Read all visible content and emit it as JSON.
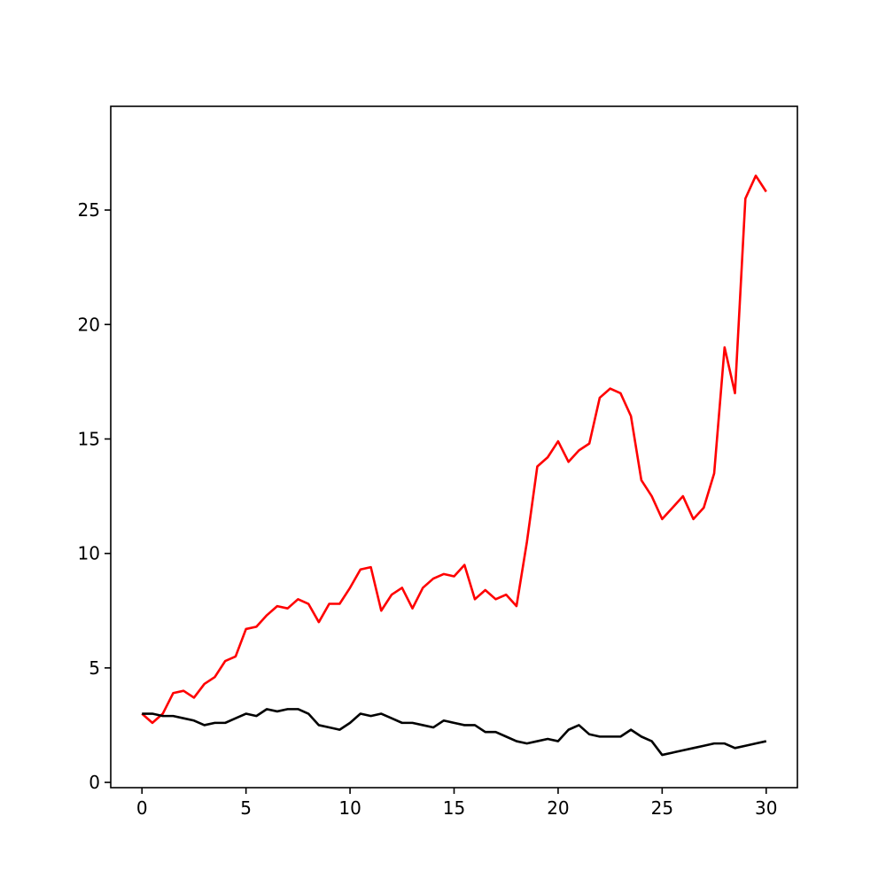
{
  "chart_data": {
    "type": "line",
    "x": [
      0,
      0.5,
      1,
      1.5,
      2,
      2.5,
      3,
      3.5,
      4,
      4.5,
      5,
      5.5,
      6,
      6.5,
      7,
      7.5,
      8,
      8.5,
      9,
      9.5,
      10,
      10.5,
      11,
      11.5,
      12,
      12.5,
      13,
      13.5,
      14,
      14.5,
      15,
      15.5,
      16,
      16.5,
      17,
      17.5,
      18,
      18.5,
      19,
      19.5,
      20,
      20.5,
      21,
      21.5,
      22,
      22.5,
      23,
      23.5,
      24,
      24.5,
      25,
      25.5,
      26,
      26.5,
      27,
      27.5,
      28,
      28.5,
      29,
      29.5,
      30
    ],
    "series": [
      {
        "color": "#ff0000",
        "values": [
          3.0,
          2.6,
          3.0,
          3.9,
          4.0,
          3.7,
          4.3,
          4.6,
          5.3,
          5.5,
          6.7,
          6.8,
          7.3,
          7.7,
          7.6,
          8.0,
          7.8,
          7.0,
          7.8,
          7.8,
          8.5,
          9.3,
          9.4,
          7.5,
          8.2,
          8.5,
          7.6,
          8.5,
          8.9,
          9.1,
          9.0,
          9.5,
          8.0,
          8.4,
          8.0,
          8.2,
          7.7,
          10.5,
          13.8,
          14.2,
          14.9,
          14.0,
          14.5,
          14.8,
          16.8,
          17.2,
          17.0,
          16.0,
          13.2,
          12.5,
          11.5,
          12.0,
          12.5,
          11.5,
          12.0,
          13.5,
          19.0,
          17.0,
          25.5,
          26.5,
          25.8
        ]
      },
      {
        "color": "#000000",
        "values": [
          3.0,
          3.0,
          2.9,
          2.9,
          2.8,
          2.7,
          2.5,
          2.6,
          2.6,
          2.8,
          3.0,
          2.9,
          3.2,
          3.1,
          3.2,
          3.2,
          3.0,
          2.5,
          2.4,
          2.3,
          2.6,
          3.0,
          2.9,
          3.0,
          2.8,
          2.6,
          2.6,
          2.5,
          2.4,
          2.7,
          2.6,
          2.5,
          2.5,
          2.2,
          2.2,
          2.0,
          1.8,
          1.7,
          1.8,
          1.9,
          1.8,
          2.3,
          2.5,
          2.1,
          2.0,
          2.0,
          2.0,
          2.3,
          2.0,
          1.8,
          1.2,
          1.3,
          1.4,
          1.5,
          1.6,
          1.7,
          1.7,
          1.5,
          1.6,
          1.7,
          1.8
        ]
      }
    ],
    "xlim": [
      -1.5,
      31.5
    ],
    "xticks": [
      0,
      5,
      10,
      15,
      20,
      25,
      30
    ],
    "ylim": [
      -0.23,
      29.53
    ],
    "yticks": [
      0,
      5,
      10,
      15,
      20,
      25
    ]
  }
}
